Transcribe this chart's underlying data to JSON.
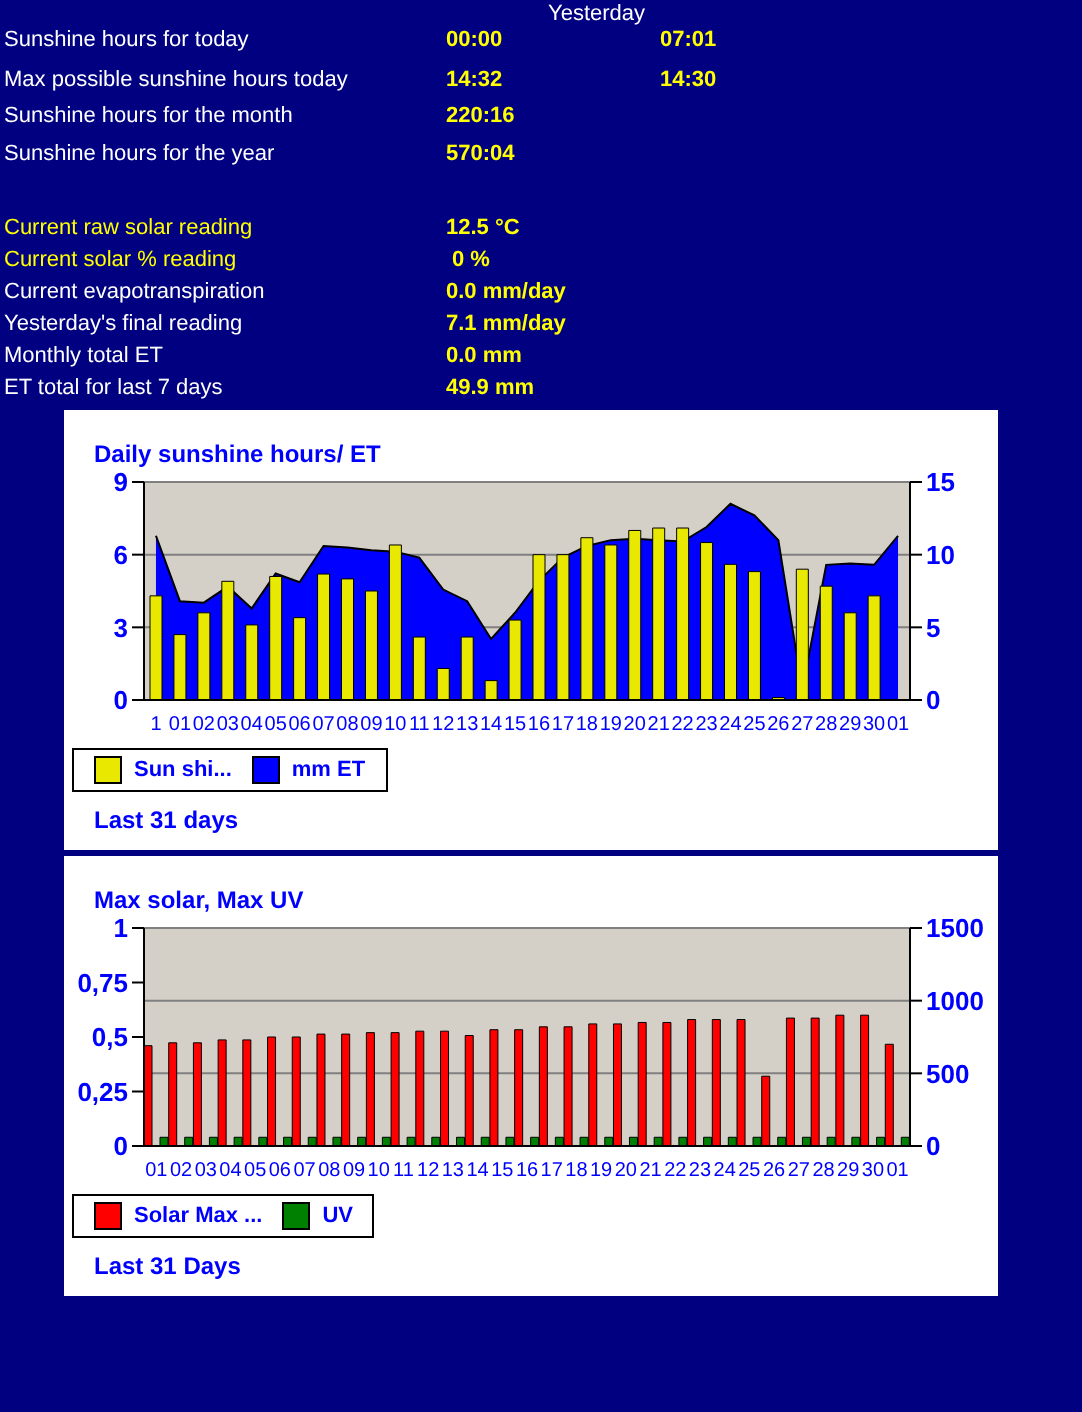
{
  "chart_data": [
    {
      "type": "other",
      "annotations": [
        "Sunshine hours for today",
        "00:00",
        "Yesterday",
        "07:01",
        "Max possible sunshine hours today",
        "14:32",
        "14:30",
        "Sunshine hours for the month",
        "220:16",
        "Sunshine hours for the year",
        "570:04",
        "Current raw solar reading",
        "12.5 °C",
        "Current solar % reading",
        "0 %",
        "Current evapotranspiration",
        "0.0 mm/day",
        "Yesterday's final reading",
        "7.1 mm/day",
        "Monthly total ET",
        "0.0 mm",
        "ET total for last 7 days",
        "49.9 mm"
      ]
    },
    {
      "type": "bar",
      "title": "Daily sunshine hours/ ET",
      "categories": [
        "1",
        "01",
        "02",
        "03",
        "04",
        "05",
        "06",
        "07",
        "08",
        "09",
        "10",
        "11",
        "12",
        "13",
        "14",
        "15",
        "16",
        "17",
        "18",
        "19",
        "20",
        "21",
        "22",
        "23",
        "24",
        "25",
        "26",
        "27",
        "28",
        "29",
        "30",
        "01"
      ],
      "series": [
        {
          "name": "Sun shi...",
          "color": "#e8e800",
          "values": [
            4.3,
            2.7,
            3.6,
            4.9,
            3.1,
            5.1,
            3.4,
            5.2,
            5.0,
            4.5,
            6.4,
            2.6,
            1.3,
            2.6,
            0.8,
            3.3,
            6.0,
            6.0,
            6.7,
            6.4,
            7.0,
            7.1,
            7.1,
            6.5,
            5.6,
            5.3,
            0.1,
            5.4,
            4.7,
            3.6,
            4.3,
            null
          ]
        },
        {
          "name": "mm ET",
          "type": "area",
          "axis": "y2",
          "color": "#0000ff",
          "values": [
            11.3,
            6.8,
            6.7,
            7.8,
            6.3,
            8.7,
            8.1,
            10.6,
            10.5,
            10.3,
            10.2,
            9.8,
            7.6,
            6.8,
            4.2,
            6.0,
            8.2,
            9.8,
            10.6,
            11.0,
            11.1,
            11.0,
            10.9,
            11.9,
            13.5,
            12.7,
            11.0,
            0.7,
            9.3,
            9.4,
            9.3,
            11.3
          ]
        }
      ],
      "ylim": [
        0,
        9
      ],
      "yticks": [
        0,
        3,
        6,
        9
      ],
      "y2lim": [
        0,
        15
      ],
      "y2ticks": [
        0,
        5,
        10,
        15
      ],
      "grid": "y",
      "legend": "bottom",
      "annotations": [
        "Last 31 days"
      ]
    },
    {
      "type": "bar",
      "title": "Max solar, Max UV",
      "categories": [
        "01",
        "02",
        "03",
        "04",
        "05",
        "06",
        "07",
        "08",
        "09",
        "10",
        "11",
        "12",
        "13",
        "14",
        "15",
        "16",
        "17",
        "18",
        "19",
        "20",
        "21",
        "22",
        "23",
        "24",
        "25",
        "26",
        "27",
        "28",
        "29",
        "30",
        "01"
      ],
      "series": [
        {
          "name": "Solar Max ...",
          "color": "#ff0000",
          "axis": "y2",
          "values": [
            690,
            710,
            710,
            730,
            730,
            750,
            750,
            770,
            770,
            780,
            780,
            790,
            790,
            760,
            800,
            800,
            820,
            820,
            840,
            840,
            850,
            850,
            870,
            870,
            870,
            480,
            880,
            880,
            900,
            900,
            700
          ]
        },
        {
          "name": "UV",
          "color": "#008000",
          "values": [
            0.04,
            0.04,
            0.04,
            0.04,
            0.04,
            0.04,
            0.04,
            0.04,
            0.04,
            0.04,
            0.04,
            0.04,
            0.04,
            0.04,
            0.04,
            0.04,
            0.04,
            0.04,
            0.04,
            0.04,
            0.04,
            0.04,
            0.04,
            0.04,
            0.04,
            0.04,
            0.04,
            0.04,
            0.04,
            0.04,
            0.04
          ]
        }
      ],
      "ylim": [
        0,
        1
      ],
      "yticks": [
        0,
        {
          "value": 0.25,
          "label": "0,25"
        },
        {
          "value": 0.5,
          "label": "0,5"
        },
        {
          "value": 0.75,
          "label": "0,75"
        },
        1
      ],
      "y2lim": [
        0,
        1500
      ],
      "y2ticks": [
        0,
        500,
        1000,
        1500
      ],
      "grid": "y",
      "legend": "bottom",
      "annotations": [
        "Last 31 Days"
      ]
    }
  ]
}
